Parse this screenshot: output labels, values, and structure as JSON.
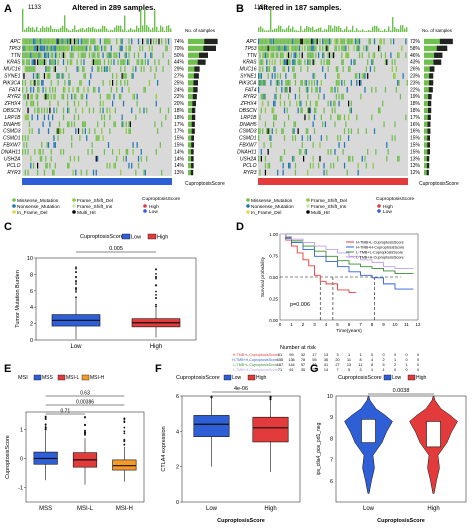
{
  "panels": {
    "A": {
      "label": "A",
      "altered_text": "Altered in 289 samples.",
      "tmb_max": "1133",
      "score_bar_label": "CuproptosisScore"
    },
    "B": {
      "label": "B",
      "altered_text": "Altered in 187 samples.",
      "tmb_max": "1133",
      "score_bar_label": "CuproptosisScore"
    },
    "C": {
      "label": "C"
    },
    "D": {
      "label": "D"
    },
    "E": {
      "label": "E"
    },
    "F": {
      "label": "F"
    },
    "G": {
      "label": "G"
    }
  },
  "oncoprint": {
    "A": {
      "genes": [
        "APC",
        "TP53",
        "TTN",
        "KRAS",
        "MUC16",
        "SYNE1",
        "PIK3CA",
        "FAT4",
        "RYR2",
        "ZFHX4",
        "OBSCN",
        "LRP1B",
        "DNAH5",
        "CSMD3",
        "CSMD1",
        "FBXW7",
        "DNAH11",
        "USH2A",
        "PCLO",
        "RYR3"
      ],
      "pcts": [
        "74%",
        "70%",
        "50%",
        "44%",
        "29%",
        "27%",
        "25%",
        "24%",
        "22%",
        "20%",
        "18%",
        "18%",
        "17%",
        "17%",
        "15%",
        "15%",
        "14%",
        "14%",
        "14%",
        "13%"
      ],
      "densities": [
        0.74,
        0.7,
        0.5,
        0.44,
        0.29,
        0.27,
        0.25,
        0.24,
        0.22,
        0.2,
        0.18,
        0.18,
        0.17,
        0.17,
        0.15,
        0.15,
        0.14,
        0.14,
        0.14,
        0.13
      ],
      "axis_label": "No. of samples"
    },
    "B": {
      "genes": [
        "APC",
        "TP53",
        "TTN",
        "KRAS",
        "MUC16",
        "SYNE1",
        "PIK3CA",
        "FAT4",
        "RYR2",
        "ZFHX4",
        "OBSCN",
        "LRP1B",
        "DNAH5",
        "CSMD3",
        "CSMD1",
        "FBXW7",
        "DNAH11",
        "USH2A",
        "PCLO",
        "RYR3"
      ],
      "pcts": [
        "72%",
        "58%",
        "46%",
        "43%",
        "26%",
        "23%",
        "23%",
        "22%",
        "19%",
        "18%",
        "18%",
        "17%",
        "16%",
        "16%",
        "15%",
        "15%",
        "15%",
        "13%",
        "13%",
        "12%"
      ],
      "densities": [
        0.72,
        0.58,
        0.46,
        0.43,
        0.26,
        0.23,
        0.23,
        0.22,
        0.19,
        0.18,
        0.18,
        0.17,
        0.16,
        0.16,
        0.15,
        0.15,
        0.15,
        0.13,
        0.13,
        0.12
      ],
      "axis_label": "No. of samples"
    },
    "legend": {
      "mutations": [
        "Missense_Mutation",
        "Nonsense_Mutation",
        "In_Frame_Del",
        "Frame_Shift_Del",
        "Frame_Shift_Ins",
        "Multi_Hit",
        "In_Frame_Ins",
        "Nonsense_Mutation",
        "Frame_Shift_Ins"
      ],
      "legend_A": [
        "Missense_Mutation",
        "Frame_Shift_Del",
        "Nonsense_Mutation",
        "Frame_Shift_Ins",
        "In_Frame_Del",
        "Multi_Hit"
      ],
      "legend_B": [
        "Missense_Mutation",
        "Frame_Shift_Del",
        "Nonsense_Mutation",
        "Frame_Shift_Ins",
        "In_Frame_Del",
        "Multi_Hit"
      ],
      "score_title": "CuproptosisScore",
      "score_levels": [
        "High",
        "Low"
      ]
    },
    "colors": {
      "missense": "#6fbf4e",
      "nonsense": "#1f77b4",
      "frameshift_del": "#8ecb3a",
      "frameshift_ins": "#c7e9b4",
      "inframe_del": "#e8d44d",
      "multi_hit": "#000000",
      "bg": "#d9d9d9",
      "low": "#2f5fd6",
      "high": "#e33b3b"
    }
  },
  "chart_data": [
    {
      "panel": "C",
      "type": "box",
      "title": "CuproptosisScore",
      "legend": [
        "Low",
        "High"
      ],
      "categories": [
        "Low",
        "High"
      ],
      "xlabel": "",
      "ylabel": "Tumor Mutation Burden",
      "ylim": [
        0,
        10
      ],
      "yticks": [
        "0",
        "2",
        "4",
        "6",
        "8",
        "10"
      ],
      "boxes": [
        {
          "name": "Low",
          "q1": 1.7,
          "median": 2.4,
          "q3": 3.1,
          "whisker_low": 0.1,
          "whisker_high": 5.2,
          "color": "#2f5fd6"
        },
        {
          "name": "High",
          "q1": 1.6,
          "median": 2.1,
          "q3": 2.6,
          "whisker_low": 0.3,
          "whisker_high": 4.0,
          "color": "#e33b3b"
        }
      ],
      "annotation": "0.005"
    },
    {
      "panel": "D",
      "type": "line",
      "title": "",
      "xlabel": "Time(years)",
      "ylabel": "Survival probability",
      "xlim": [
        0,
        12
      ],
      "ylim": [
        0,
        1
      ],
      "xticks": [
        "0",
        "1",
        "2",
        "3",
        "4",
        "5",
        "6",
        "7",
        "8",
        "9",
        "10",
        "11",
        "12"
      ],
      "yticks": [
        "0.00",
        "0.25",
        "0.50",
        "0.75",
        "1.00"
      ],
      "series": [
        {
          "name": "H-TMB+L-CuproptosisScore",
          "color": "#e33b3b",
          "x": [
            0,
            0.5,
            1,
            1.5,
            2,
            2.5,
            3,
            3.5,
            4,
            5,
            6
          ],
          "y": [
            1,
            0.93,
            0.86,
            0.78,
            0.7,
            0.63,
            0.52,
            0.45,
            0.42,
            0.35,
            0.32
          ]
        },
        {
          "name": "H-TMB+H-CuproptosisScore",
          "color": "#2f5fd6",
          "x": [
            0,
            0.5,
            1,
            2,
            3,
            4,
            5,
            6,
            7,
            8,
            9,
            10,
            11
          ],
          "y": [
            1,
            0.95,
            0.9,
            0.82,
            0.74,
            0.68,
            0.62,
            0.56,
            0.52,
            0.49,
            0.42,
            0.36,
            0.36
          ]
        },
        {
          "name": "L-TMB+L-CuproptosisScore",
          "color": "#3a8c3a",
          "x": [
            0,
            0.5,
            1,
            2,
            3,
            4,
            5,
            6,
            7,
            8,
            9,
            10,
            11
          ],
          "y": [
            1,
            0.96,
            0.92,
            0.86,
            0.8,
            0.74,
            0.69,
            0.65,
            0.62,
            0.6,
            0.57,
            0.54,
            0.54
          ]
        },
        {
          "name": "L-TMB+H-CuproptosisScore",
          "color": "#c0a0e8",
          "x": [
            0,
            0.5,
            1,
            2,
            3,
            4,
            5,
            6,
            7,
            8,
            9,
            10,
            11
          ],
          "y": [
            1,
            0.97,
            0.94,
            0.9,
            0.86,
            0.82,
            0.78,
            0.74,
            0.7,
            0.67,
            0.62,
            0.6,
            0.6
          ]
        }
      ],
      "median_line": 0.5,
      "pvalue": "p=0.006",
      "risk_title": "Number at risk",
      "risk_rows": [
        {
          "name": "H-TMB+L-CuproptosisScore",
          "color": "#e33b3b",
          "values": [
            "61",
            "59",
            "32",
            "17",
            "13",
            "3",
            "1",
            "1",
            "0",
            "0",
            "0",
            "0",
            "0"
          ]
        },
        {
          "name": "H-TMB+H-CuproptosisScore",
          "color": "#2f5fd6",
          "values": [
            "155",
            "136",
            "78",
            "55",
            "36",
            "20",
            "11",
            "8",
            "4",
            "2",
            "1",
            "0",
            "0"
          ]
        },
        {
          "name": "L-TMB+L-CuproptosisScore",
          "color": "#3a8c3a",
          "values": [
            "167",
            "144",
            "97",
            "63",
            "41",
            "27",
            "13",
            "11",
            "8",
            "5",
            "2",
            "1",
            "0"
          ]
        },
        {
          "name": "L-TMB+H-CuproptosisScore",
          "color": "#c0a0e8",
          "values": [
            "71",
            "61",
            "35",
            "21",
            "14",
            "7",
            "5",
            "3",
            "1",
            "1",
            "0",
            "0",
            "0"
          ]
        }
      ]
    },
    {
      "panel": "E",
      "type": "box",
      "title": "MSI",
      "legend": [
        "MSS",
        "MSI-L",
        "MSI-H"
      ],
      "categories": [
        "MSS",
        "MSI-L",
        "MSI-H"
      ],
      "xlabel": "",
      "ylabel": "CuproptosisScore",
      "ylim": [
        -1.5,
        1.6
      ],
      "yticks": [
        "-1",
        "0",
        "1"
      ],
      "boxes": [
        {
          "name": "MSS",
          "q1": -0.2,
          "median": 0.0,
          "q3": 0.22,
          "whisker_low": -0.75,
          "whisker_high": 0.95,
          "color": "#2f5fd6"
        },
        {
          "name": "MSI-L",
          "q1": -0.3,
          "median": -0.05,
          "q3": 0.2,
          "whisker_low": -0.9,
          "whisker_high": 0.7,
          "color": "#e33b3b"
        },
        {
          "name": "MSI-H",
          "q1": -0.4,
          "median": -0.25,
          "q3": -0.05,
          "whisker_low": -0.8,
          "whisker_high": 0.4,
          "color": "#f39a2b"
        }
      ],
      "annotations": [
        "0.63",
        "0.00386",
        "0.71"
      ]
    },
    {
      "panel": "F",
      "type": "box",
      "title": "CuproptosisScore",
      "legend": [
        "Low",
        "High"
      ],
      "categories": [
        "Low",
        "High"
      ],
      "xlabel": "CuproptosisScore",
      "ylabel": "CTLA4 expression",
      "ylim": [
        0,
        6
      ],
      "yticks": [
        "0",
        "2",
        "4",
        "6"
      ],
      "boxes": [
        {
          "name": "Low",
          "q1": 3.7,
          "median": 4.4,
          "q3": 4.9,
          "whisker_low": 2.0,
          "whisker_high": 5.9,
          "color": "#2f5fd6"
        },
        {
          "name": "High",
          "q1": 3.4,
          "median": 4.2,
          "q3": 4.8,
          "whisker_low": 1.7,
          "whisker_high": 5.8,
          "color": "#e33b3b"
        }
      ],
      "annotation": "4e-06"
    },
    {
      "panel": "G",
      "type": "violin",
      "title": "CuproptosisScore",
      "legend": [
        "Low",
        "High"
      ],
      "categories": [
        "Low",
        "High"
      ],
      "xlabel": "CuproptosisScore",
      "ylabel": "ips_ctla4_pos_pd1_neg",
      "ylim": [
        5,
        10
      ],
      "yticks": [
        "6",
        "7",
        "8",
        "9",
        "10"
      ],
      "boxes": [
        {
          "name": "Low",
          "q1": 7.8,
          "median": 8.4,
          "q3": 8.9,
          "color": "#2f5fd6"
        },
        {
          "name": "High",
          "q1": 7.6,
          "median": 8.2,
          "q3": 8.8,
          "color": "#e33b3b"
        }
      ],
      "annotation": "0.0038"
    }
  ]
}
